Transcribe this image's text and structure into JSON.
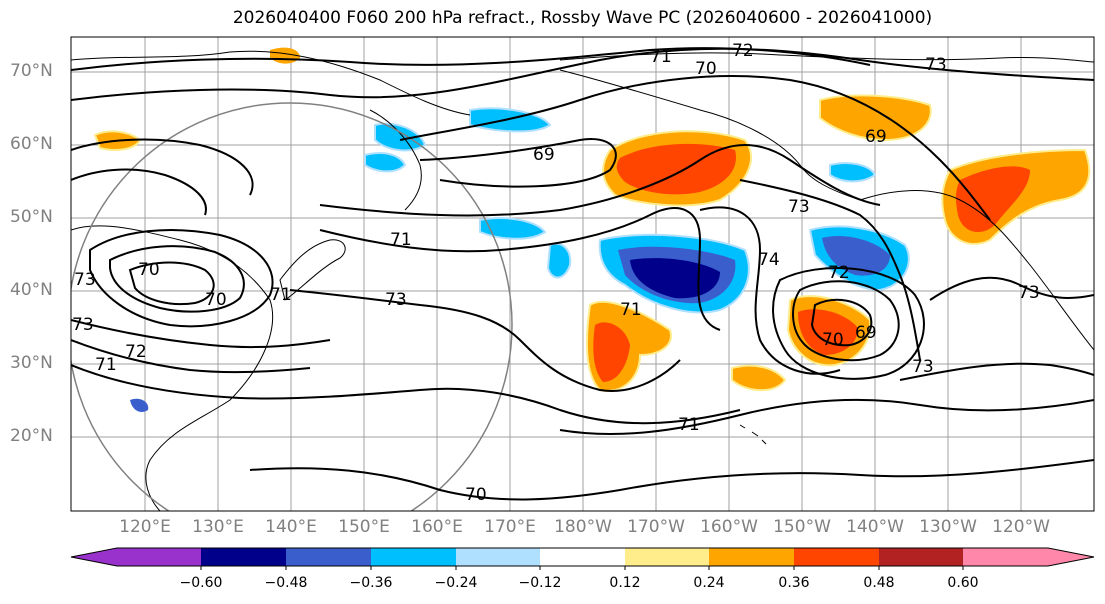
{
  "title": "2026040400 F060 200 hPa refract., Rossby Wave PC (2026040600 - 2026041000)",
  "lat_labels": [
    "70°N",
    "60°N",
    "50°N",
    "40°N",
    "30°N",
    "20°N"
  ],
  "lon_labels": [
    "120°E",
    "130°E",
    "140°E",
    "150°E",
    "160°E",
    "170°E",
    "180°W",
    "170°W",
    "160°W",
    "150°W",
    "140°W",
    "130°W",
    "120°W"
  ],
  "colorbar": {
    "ticks": [
      "−0.60",
      "−0.48",
      "−0.36",
      "−0.24",
      "−0.12",
      "0.12",
      "0.24",
      "0.36",
      "0.48",
      "0.60"
    ],
    "colors": [
      "#9932cc",
      "#00008b",
      "#3a5fcd",
      "#00bfff",
      "#b0e0ff",
      "#ffffff",
      "#ffec8b",
      "#ffa500",
      "#ff4500",
      "#b22222",
      "#ff88aa"
    ]
  },
  "contour_labels": [
    "71",
    "72",
    "70",
    "73",
    "69",
    "69",
    "71",
    "73",
    "73",
    "74",
    "72",
    "70",
    "69",
    "73",
    "70",
    "71",
    "73",
    "73",
    "72",
    "71",
    "71",
    "70",
    "73",
    "71",
    "70"
  ]
}
